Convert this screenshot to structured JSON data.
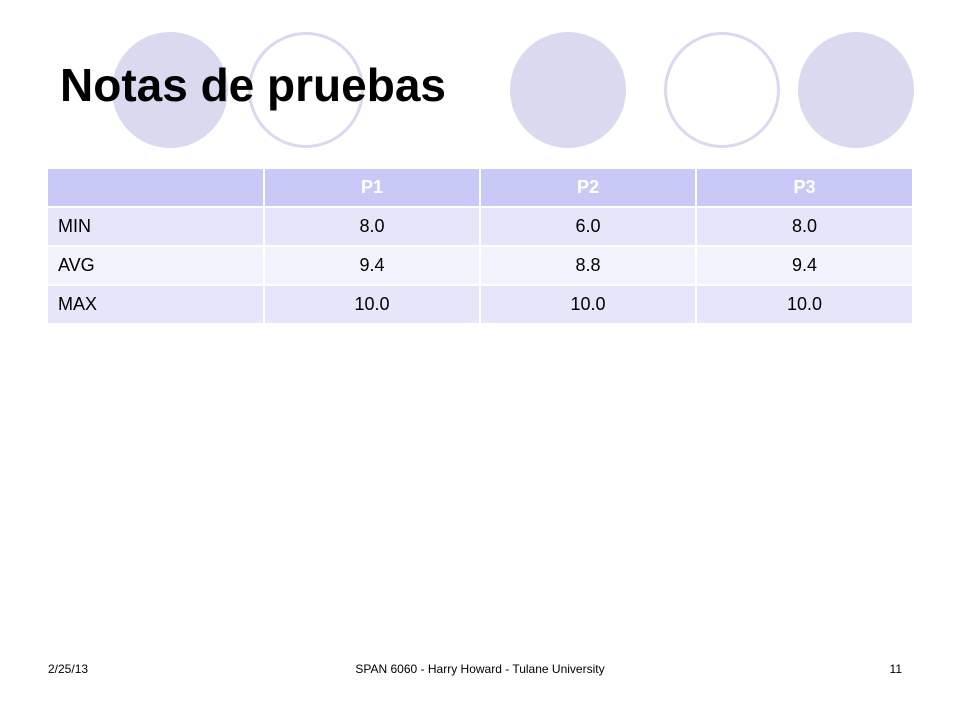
{
  "slide": {
    "title": "Notas de pruebas",
    "decoration_colors": {
      "circle_fill": "#d9d9ef",
      "header_fill": "#c9c9f7",
      "row_fill": "#e6e6fa",
      "row_alt_fill": "#f3f3fd"
    }
  },
  "table": {
    "headers": [
      "",
      "P1",
      "P2",
      "P3"
    ],
    "rows": [
      {
        "label": "MIN",
        "values": [
          "8.0",
          "6.0",
          "8.0"
        ]
      },
      {
        "label": "AVG",
        "values": [
          "9.4",
          "8.8",
          "9.4"
        ]
      },
      {
        "label": "MAX",
        "values": [
          "10.0",
          "10.0",
          "10.0"
        ]
      }
    ]
  },
  "footer": {
    "date": "2/25/13",
    "center": "SPAN 6060 - Harry Howard - Tulane University",
    "page": "11"
  }
}
